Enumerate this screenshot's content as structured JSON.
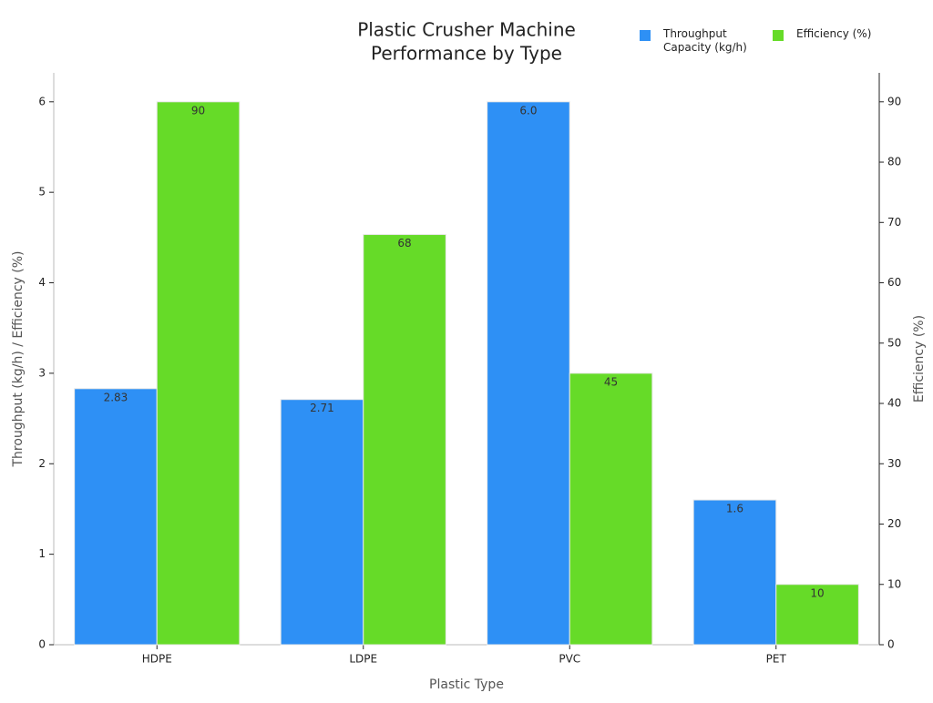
{
  "chart_data": {
    "type": "bar",
    "title": [
      "Plastic Crusher Machine",
      "Performance by Type"
    ],
    "x_label": "Plastic Type",
    "y_label": "Throughput (kg/h) / Efficiency (%)",
    "y2_label": "Efficiency (%)",
    "categories": [
      "HDPE",
      "LDPE",
      "PVC",
      "PET"
    ],
    "series": [
      {
        "name": "Throughput Capacity (kg/h)",
        "color": "#2e90f5",
        "values": [
          2.83,
          2.71,
          6.0,
          1.6
        ],
        "value_labels": [
          "2.83",
          "2.71",
          "6.0",
          "1.6"
        ]
      },
      {
        "name": "Efficiency (%)",
        "color": "#66db28",
        "axis": "y2",
        "values": [
          90,
          68,
          45,
          10
        ]
      }
    ],
    "ylim": [
      0,
      6.32
    ],
    "yticks": [
      0,
      1,
      2,
      3,
      4,
      5,
      6
    ],
    "y2lim": [
      0,
      94.8
    ],
    "y2ticks": [
      0,
      10,
      20,
      30,
      40,
      50,
      60,
      70,
      80,
      90
    ],
    "legend": "upper right"
  }
}
